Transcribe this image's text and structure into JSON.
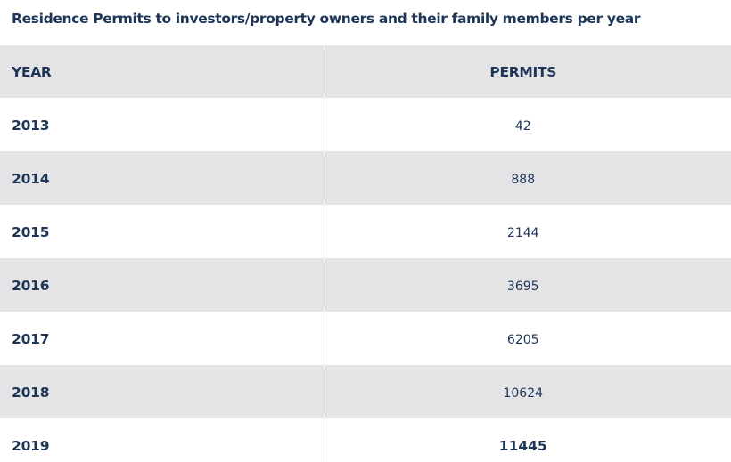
{
  "title": "Residence Permits to investors/property owners and their family members per year",
  "table": {
    "headers": {
      "year": "YEAR",
      "permits": "PERMITS"
    },
    "rows": [
      {
        "year": "2013",
        "permits": "42"
      },
      {
        "year": "2014",
        "permits": "888"
      },
      {
        "year": "2015",
        "permits": "2144"
      },
      {
        "year": "2016",
        "permits": "3695"
      },
      {
        "year": "2017",
        "permits": "6205"
      },
      {
        "year": "2018",
        "permits": "10624"
      },
      {
        "year": "2019",
        "permits": "11445"
      }
    ]
  },
  "colors": {
    "text": "#1d3557",
    "shaded_row": "#e4e4e6",
    "plain_row": "#ffffff"
  }
}
